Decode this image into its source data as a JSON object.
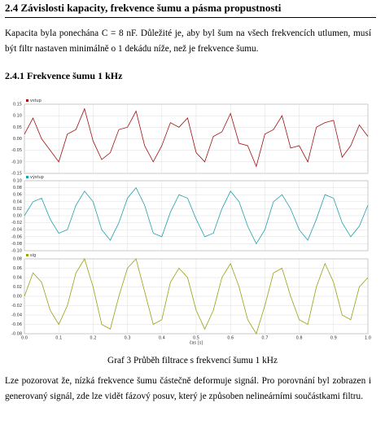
{
  "heading": "2.4  Závislosti kapacity, frekvence šumu a pásma propustnosti",
  "paragraph_1": "Kapacita byla ponechána C = 8 nF. Důležité je, aby byl šum na všech frekvencích utlumen, musí být filtr nastaven minimálně o 1 dekádu níže, než je frekvence šumu.",
  "subheading": "2.4.1    Frekvence šumu 1 kHz",
  "chart_data": [
    {
      "type": "line",
      "xlim": [
        0,
        1
      ],
      "ylim": [
        -0.15,
        0.15
      ],
      "grid": true,
      "yticks": [
        {
          "value": -0.15,
          "label": "-0.15"
        },
        {
          "value": -0.1,
          "label": "-0.10"
        },
        {
          "value": -0.05,
          "label": "-0.05"
        },
        {
          "value": 0,
          "label": "0.00"
        },
        {
          "value": 0.05,
          "label": "0.05"
        },
        {
          "value": 0.1,
          "label": "0.10"
        },
        {
          "value": 0.15,
          "label": "0.15"
        }
      ],
      "x": [
        0,
        0.025,
        0.05,
        0.075,
        0.1,
        0.125,
        0.15,
        0.175,
        0.2,
        0.225,
        0.25,
        0.275,
        0.3,
        0.325,
        0.35,
        0.375,
        0.4,
        0.425,
        0.45,
        0.475,
        0.5,
        0.525,
        0.55,
        0.575,
        0.6,
        0.625,
        0.65,
        0.675,
        0.7,
        0.725,
        0.75,
        0.775,
        0.8,
        0.825,
        0.85,
        0.875,
        0.9,
        0.925,
        0.95,
        0.975,
        1
      ],
      "series": [
        {
          "name": "vstup",
          "color": "#a01010",
          "values": [
            0.02,
            0.09,
            0.0,
            -0.05,
            -0.1,
            0.02,
            0.04,
            0.13,
            -0.01,
            -0.09,
            -0.06,
            0.04,
            0.05,
            0.12,
            -0.03,
            -0.1,
            -0.03,
            0.07,
            0.05,
            0.09,
            -0.06,
            -0.1,
            0.01,
            0.03,
            0.11,
            -0.02,
            -0.03,
            -0.12,
            0.02,
            0.04,
            0.1,
            -0.04,
            -0.03,
            -0.1,
            0.05,
            0.07,
            0.08,
            -0.08,
            -0.03,
            0.06,
            0.01
          ]
        }
      ]
    },
    {
      "type": "line",
      "xlim": [
        0,
        1
      ],
      "ylim": [
        -0.1,
        0.1
      ],
      "grid": true,
      "yticks": [
        {
          "value": -0.1,
          "label": "-0.10"
        },
        {
          "value": -0.08,
          "label": "-0.08"
        },
        {
          "value": -0.06,
          "label": "-0.06"
        },
        {
          "value": -0.04,
          "label": "-0.04"
        },
        {
          "value": -0.02,
          "label": "-0.02"
        },
        {
          "value": 0,
          "label": "0.00"
        },
        {
          "value": 0.02,
          "label": "0.02"
        },
        {
          "value": 0.04,
          "label": "0.04"
        },
        {
          "value": 0.06,
          "label": "0.06"
        },
        {
          "value": 0.08,
          "label": "0.08"
        },
        {
          "value": 0.1,
          "label": "0.10"
        }
      ],
      "x": [
        0,
        0.025,
        0.05,
        0.075,
        0.1,
        0.125,
        0.15,
        0.175,
        0.2,
        0.225,
        0.25,
        0.275,
        0.3,
        0.325,
        0.35,
        0.375,
        0.4,
        0.425,
        0.45,
        0.475,
        0.5,
        0.525,
        0.55,
        0.575,
        0.6,
        0.625,
        0.65,
        0.675,
        0.7,
        0.725,
        0.75,
        0.775,
        0.8,
        0.825,
        0.85,
        0.875,
        0.9,
        0.925,
        0.95,
        0.975,
        1
      ],
      "series": [
        {
          "name": "výstup",
          "color": "#20a0a8",
          "values": [
            0.0,
            0.04,
            0.05,
            -0.01,
            -0.05,
            -0.04,
            0.03,
            0.07,
            0.04,
            -0.04,
            -0.07,
            -0.02,
            0.05,
            0.08,
            0.03,
            -0.05,
            -0.06,
            0.01,
            0.06,
            0.05,
            -0.01,
            -0.06,
            -0.05,
            0.02,
            0.07,
            0.04,
            -0.03,
            -0.08,
            -0.04,
            0.04,
            0.06,
            0.02,
            -0.04,
            -0.07,
            -0.01,
            0.06,
            0.05,
            -0.02,
            -0.06,
            -0.03,
            0.03
          ]
        }
      ]
    },
    {
      "type": "line",
      "xlim": [
        0,
        1
      ],
      "ylim": [
        -0.08,
        0.08
      ],
      "grid": true,
      "x_label": "čas [s]",
      "xticks": [
        {
          "value": 0,
          "label": "0.0"
        },
        0.1,
        0.2,
        0.3,
        0.4,
        0.5,
        0.6,
        0.7,
        0.8,
        0.9,
        {
          "value": 1,
          "label": "1.0"
        }
      ],
      "yticks": [
        {
          "value": -0.08,
          "label": "-0.08"
        },
        {
          "value": -0.06,
          "label": "-0.06"
        },
        {
          "value": -0.04,
          "label": "-0.04"
        },
        {
          "value": -0.02,
          "label": "-0.02"
        },
        {
          "value": 0,
          "label": "0.00"
        },
        {
          "value": 0.02,
          "label": "0.02"
        },
        {
          "value": 0.04,
          "label": "0.04"
        },
        {
          "value": 0.06,
          "label": "0.06"
        },
        {
          "value": 0.08,
          "label": "0.08"
        }
      ],
      "x": [
        0,
        0.025,
        0.05,
        0.075,
        0.1,
        0.125,
        0.15,
        0.175,
        0.2,
        0.225,
        0.25,
        0.275,
        0.3,
        0.325,
        0.35,
        0.375,
        0.4,
        0.425,
        0.45,
        0.475,
        0.5,
        0.525,
        0.55,
        0.575,
        0.6,
        0.625,
        0.65,
        0.675,
        0.7,
        0.725,
        0.75,
        0.775,
        0.8,
        0.825,
        0.85,
        0.875,
        0.9,
        0.925,
        0.95,
        0.975,
        1
      ],
      "series": [
        {
          "name": "sig",
          "color": "#9aa010",
          "values": [
            0.0,
            0.05,
            0.03,
            -0.03,
            -0.06,
            -0.02,
            0.05,
            0.08,
            0.02,
            -0.06,
            -0.07,
            0.0,
            0.06,
            0.08,
            0.01,
            -0.06,
            -0.05,
            0.03,
            0.06,
            0.04,
            -0.03,
            -0.07,
            -0.03,
            0.04,
            0.07,
            0.02,
            -0.05,
            -0.08,
            -0.02,
            0.05,
            0.06,
            0.0,
            -0.05,
            -0.06,
            0.02,
            0.07,
            0.03,
            -0.04,
            -0.05,
            0.02,
            0.04
          ]
        }
      ]
    }
  ],
  "caption": "Graf 3 Průběh filtrace s frekvencí šumu 1 kHz",
  "paragraph_2": "Lze pozorovat že, nízká frekvence šumu částečně deformuje signál. Pro porovnání byl zobrazen i generovaný signál, zde lze vidět fázový posuv, který je způsoben nelineárními součástkami filtru."
}
